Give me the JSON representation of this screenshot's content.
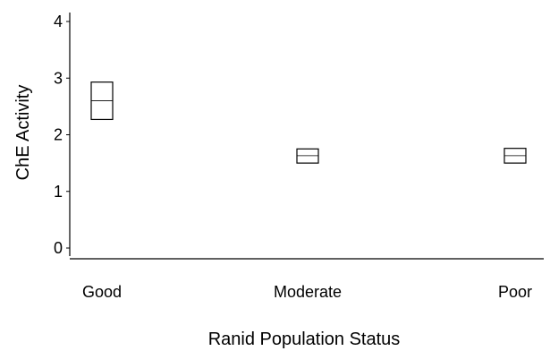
{
  "chart_data": {
    "type": "box",
    "title": "",
    "xlabel": "Ranid Population Status",
    "ylabel": "ChE Activity",
    "ylim": [
      0,
      4
    ],
    "yticks": [
      0,
      1,
      2,
      3,
      4
    ],
    "grid": false,
    "categories": [
      "Good",
      "Moderate",
      "Poor"
    ],
    "boxes": [
      {
        "category": "Good",
        "q1": 2.27,
        "median": 2.6,
        "q3": 2.93
      },
      {
        "category": "Moderate",
        "q1": 1.5,
        "median": 1.63,
        "q3": 1.75
      },
      {
        "category": "Poor",
        "q1": 1.5,
        "median": 1.63,
        "q3": 1.76
      }
    ]
  }
}
